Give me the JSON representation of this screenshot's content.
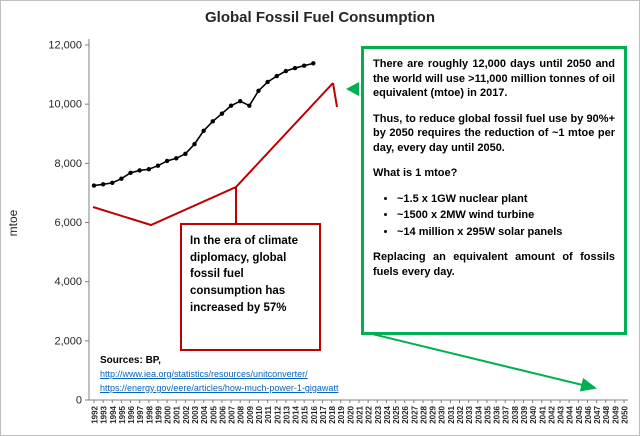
{
  "title": "Global Fossil Fuel Consumption",
  "chart_data": {
    "type": "line",
    "title": "Global Fossil Fuel Consumption",
    "xlabel": "",
    "ylabel": "mtoe",
    "ylim": [
      0,
      12000
    ],
    "ytick_values": [
      0,
      2000,
      4000,
      6000,
      8000,
      10000,
      12000
    ],
    "ytick_labels": [
      "0",
      "2,000",
      "4,000",
      "6,000",
      "8,000",
      "10,000",
      "12,000"
    ],
    "x": [
      1992,
      1993,
      1994,
      1995,
      1996,
      1997,
      1998,
      1999,
      2000,
      2001,
      2002,
      2003,
      2004,
      2005,
      2006,
      2007,
      2008,
      2009,
      2010,
      2011,
      2012,
      2013,
      2014,
      2015,
      2016
    ],
    "values": [
      7250,
      7290,
      7340,
      7480,
      7680,
      7760,
      7800,
      7920,
      8080,
      8170,
      8320,
      8650,
      9100,
      9420,
      9680,
      9950,
      10100,
      9950,
      10450,
      10750,
      10950,
      11120,
      11220,
      11300,
      11380
    ],
    "x_axis_years": [
      "1992",
      "1993",
      "1994",
      "1995",
      "1996",
      "1997",
      "1998",
      "1999",
      "2000",
      "2001",
      "2002",
      "2003",
      "2004",
      "2005",
      "2006",
      "2007",
      "2008",
      "2009",
      "2010",
      "2011",
      "2012",
      "2013",
      "2014",
      "2015",
      "2016",
      "2017",
      "2018",
      "2019",
      "2020",
      "2021",
      "2022",
      "2023",
      "2024",
      "2025",
      "2026",
      "2027",
      "2028",
      "2029",
      "2030",
      "2031",
      "2032",
      "2033",
      "2034",
      "2035",
      "2036",
      "2037",
      "2038",
      "2039",
      "2040",
      "2041",
      "2042",
      "2043",
      "2044",
      "2045",
      "2046",
      "2047",
      "2048",
      "2049",
      "2050"
    ],
    "grid": false,
    "legend": "none"
  },
  "annotations": {
    "red_box": {
      "text": "In the era of climate diplomacy, global fossil fuel consumption has increased by 57%"
    },
    "green_box": {
      "para1": "There are roughly 12,000 days until 2050 and the world will use >11,000 million tonnes of oil equivalent (mtoe) in 2017.",
      "para2": "Thus, to reduce global fossil fuel use by 90%+ by 2050 requires the reduction of ~1 mtoe per day, every day until 2050.",
      "question": "What is 1 mtoe?",
      "bullets": [
        "~1.5 x 1GW nuclear plant",
        "~1500 x 2MW wind turbine",
        "~14 million x 295W solar panels"
      ],
      "para3": "Replacing an equivalent amount of fossils fuels every day."
    }
  },
  "sources": {
    "label": "Sources: BP,",
    "links": [
      "http://www.iea.org/statistics/resources/unitconverter/",
      "https://energy.gov/eere/articles/how-much-power-1-gigawatt"
    ]
  },
  "colors": {
    "series": "#000000",
    "red": "#C00000",
    "green": "#00B050",
    "link": "#0563C1",
    "axis": "#808080",
    "text": "#262626"
  }
}
